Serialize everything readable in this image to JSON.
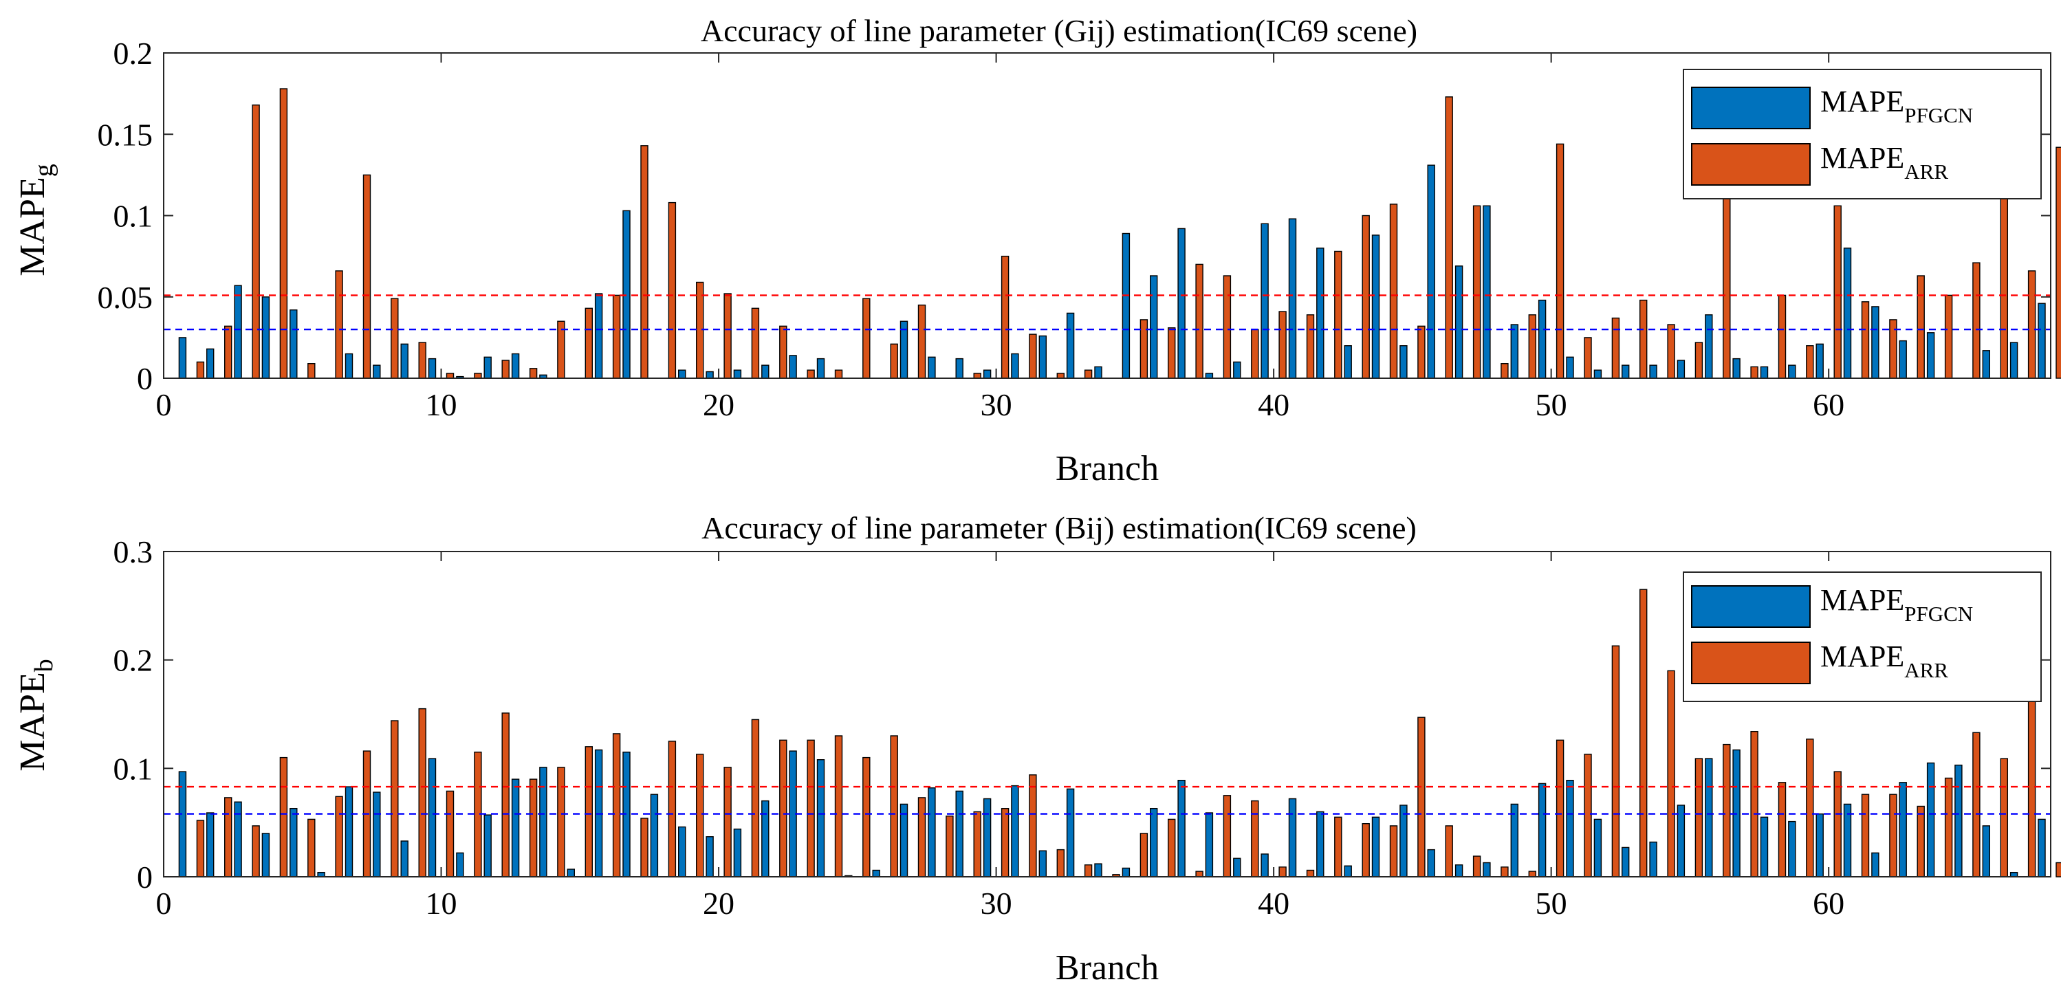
{
  "chart_data": [
    {
      "type": "bar",
      "title": "Accuracy of line parameter (Gij) estimation(IC69 scene)",
      "xlabel": "Branch",
      "ylabel": "MAPE",
      "ylabel_sub": "g",
      "xlim": [
        0,
        68
      ],
      "ylim": [
        0,
        0.2
      ],
      "xticks": [
        0,
        10,
        20,
        30,
        40,
        50,
        60
      ],
      "yticks": [
        0,
        0.05,
        0.1,
        0.15,
        0.2
      ],
      "ytick_labels": [
        "0",
        "0.05",
        "0.1",
        "0.15",
        "0.2"
      ],
      "legend": {
        "position": "top-right",
        "entries": [
          {
            "main": "MAPE",
            "sub": "PFGCN",
            "color": "#0072BD"
          },
          {
            "main": "MAPE",
            "sub": "ARR",
            "color": "#D95319"
          }
        ]
      },
      "reference_lines": [
        {
          "series": "PFGCN",
          "value": 0.03,
          "color": "#0000FF"
        },
        {
          "series": "ARR",
          "value": 0.051,
          "color": "#FF0000"
        }
      ],
      "categories": [
        1,
        2,
        3,
        4,
        5,
        6,
        7,
        8,
        9,
        10,
        11,
        12,
        13,
        14,
        15,
        16,
        17,
        18,
        19,
        20,
        21,
        22,
        23,
        24,
        25,
        26,
        27,
        28,
        29,
        30,
        31,
        32,
        33,
        34,
        35,
        36,
        37,
        38,
        39,
        40,
        41,
        42,
        43,
        44,
        45,
        46,
        47,
        48,
        49,
        50,
        51,
        52,
        53,
        54,
        55,
        56,
        57,
        58,
        59,
        60,
        61,
        62,
        63,
        64,
        65,
        66,
        67,
        68
      ],
      "series": [
        {
          "name": "MAPE_PFGCN",
          "color": "#0072BD",
          "values": [
            0.025,
            0.018,
            0.057,
            0.05,
            0.042,
            0.0,
            0.015,
            0.008,
            0.021,
            0.012,
            0.001,
            0.013,
            0.015,
            0.002,
            0.0,
            0.052,
            0.103,
            0.0,
            0.005,
            0.004,
            0.005,
            0.008,
            0.014,
            0.012,
            0.0,
            0.0,
            0.035,
            0.013,
            0.012,
            0.005,
            0.015,
            0.026,
            0.04,
            0.007,
            0.089,
            0.063,
            0.092,
            0.003,
            0.01,
            0.095,
            0.098,
            0.08,
            0.02,
            0.088,
            0.02,
            0.131,
            0.069,
            0.106,
            0.033,
            0.048,
            0.013,
            0.005,
            0.008,
            0.008,
            0.011,
            0.039,
            0.012,
            0.007,
            0.008,
            0.021,
            0.08,
            0.044,
            0.023,
            0.028,
            0.0,
            0.017,
            0.022,
            0.046
          ]
        },
        {
          "name": "MAPE_ARR",
          "color": "#D95319",
          "values": [
            0.01,
            0.032,
            0.168,
            0.178,
            0.009,
            0.066,
            0.125,
            0.049,
            0.022,
            0.003,
            0.003,
            0.011,
            0.006,
            0.035,
            0.043,
            0.051,
            0.143,
            0.108,
            0.059,
            0.052,
            0.043,
            0.032,
            0.005,
            0.005,
            0.049,
            0.021,
            0.045,
            0.0,
            0.003,
            0.075,
            0.027,
            0.003,
            0.005,
            0.0,
            0.036,
            0.031,
            0.07,
            0.063,
            0.03,
            0.041,
            0.039,
            0.078,
            0.1,
            0.107,
            0.032,
            0.173,
            0.106,
            0.009,
            0.039,
            0.144,
            0.025,
            0.037,
            0.048,
            0.033,
            0.022,
            0.12,
            0.007,
            0.051,
            0.02,
            0.106,
            0.047,
            0.036,
            0.063,
            0.051,
            0.071,
            0.12,
            0.066,
            0.142
          ]
        }
      ]
    },
    {
      "type": "bar",
      "title": "Accuracy of line parameter (Bij) estimation(IC69 scene)",
      "xlabel": "Branch",
      "ylabel": "MAPE",
      "ylabel_sub": "b",
      "xlim": [
        0,
        68
      ],
      "ylim": [
        0,
        0.3
      ],
      "xticks": [
        0,
        10,
        20,
        30,
        40,
        50,
        60
      ],
      "yticks": [
        0,
        0.1,
        0.2,
        0.3
      ],
      "ytick_labels": [
        "0",
        "0.1",
        "0.2",
        "0.3"
      ],
      "legend": {
        "position": "top-right",
        "entries": [
          {
            "main": "MAPE",
            "sub": "PFGCN",
            "color": "#0072BD"
          },
          {
            "main": "MAPE",
            "sub": "ARR",
            "color": "#D95319"
          }
        ]
      },
      "reference_lines": [
        {
          "series": "PFGCN",
          "value": 0.058,
          "color": "#0000FF"
        },
        {
          "series": "ARR",
          "value": 0.083,
          "color": "#FF0000"
        }
      ],
      "categories": [
        1,
        2,
        3,
        4,
        5,
        6,
        7,
        8,
        9,
        10,
        11,
        12,
        13,
        14,
        15,
        16,
        17,
        18,
        19,
        20,
        21,
        22,
        23,
        24,
        25,
        26,
        27,
        28,
        29,
        30,
        31,
        32,
        33,
        34,
        35,
        36,
        37,
        38,
        39,
        40,
        41,
        42,
        43,
        44,
        45,
        46,
        47,
        48,
        49,
        50,
        51,
        52,
        53,
        54,
        55,
        56,
        57,
        58,
        59,
        60,
        61,
        62,
        63,
        64,
        65,
        66,
        67,
        68
      ],
      "series": [
        {
          "name": "MAPE_PFGCN",
          "color": "#0072BD",
          "values": [
            0.097,
            0.059,
            0.069,
            0.04,
            0.063,
            0.004,
            0.083,
            0.078,
            0.033,
            0.109,
            0.022,
            0.057,
            0.09,
            0.101,
            0.007,
            0.117,
            0.115,
            0.076,
            0.046,
            0.037,
            0.044,
            0.07,
            0.116,
            0.108,
            0.001,
            0.006,
            0.067,
            0.082,
            0.079,
            0.072,
            0.084,
            0.024,
            0.081,
            0.012,
            0.008,
            0.063,
            0.089,
            0.059,
            0.017,
            0.021,
            0.072,
            0.06,
            0.01,
            0.055,
            0.066,
            0.025,
            0.011,
            0.013,
            0.067,
            0.086,
            0.089,
            0.053,
            0.027,
            0.032,
            0.066,
            0.109,
            0.117,
            0.055,
            0.051,
            0.058,
            0.067,
            0.022,
            0.087,
            0.105,
            0.103,
            0.047,
            0.004,
            0.053
          ]
        },
        {
          "name": "MAPE_ARR",
          "color": "#D95319",
          "values": [
            0.052,
            0.073,
            0.047,
            0.11,
            0.053,
            0.074,
            0.116,
            0.144,
            0.155,
            0.079,
            0.115,
            0.151,
            0.09,
            0.101,
            0.12,
            0.132,
            0.054,
            0.125,
            0.113,
            0.101,
            0.145,
            0.126,
            0.126,
            0.13,
            0.11,
            0.13,
            0.073,
            0.056,
            0.06,
            0.063,
            0.094,
            0.025,
            0.011,
            0.002,
            0.04,
            0.053,
            0.005,
            0.075,
            0.07,
            0.009,
            0.006,
            0.055,
            0.049,
            0.047,
            0.147,
            0.047,
            0.019,
            0.009,
            0.005,
            0.126,
            0.113,
            0.213,
            0.265,
            0.19,
            0.109,
            0.122,
            0.134,
            0.087,
            0.127,
            0.097,
            0.076,
            0.076,
            0.065,
            0.091,
            0.133,
            0.109,
            0.17,
            0.013
          ]
        }
      ]
    }
  ]
}
